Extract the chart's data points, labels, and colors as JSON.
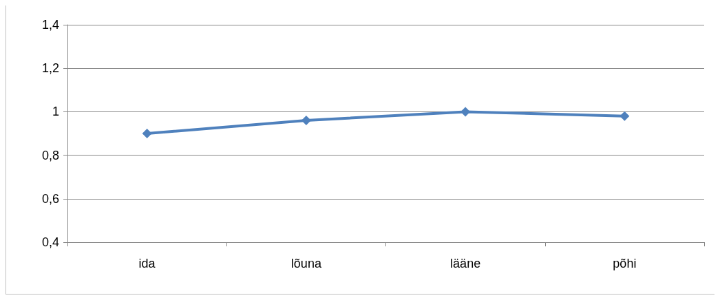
{
  "chart_data": {
    "type": "line",
    "categories": [
      "ida",
      "lõuna",
      "lääne",
      "põhi"
    ],
    "series": [
      {
        "color": "#4f81bd",
        "values": [
          0.9,
          0.96,
          1.0,
          0.98
        ]
      }
    ],
    "ylim": [
      0.4,
      1.4
    ],
    "yticks": [
      {
        "value": 0.4,
        "label": "0,4"
      },
      {
        "value": 0.6,
        "label": "0,6"
      },
      {
        "value": 0.8,
        "label": "0,8"
      },
      1,
      {
        "value": 1.2,
        "label": "1,2"
      },
      {
        "value": 1.4,
        "label": "1,4"
      }
    ],
    "grid": "y",
    "marker": "diamond",
    "line_style": "solid"
  }
}
